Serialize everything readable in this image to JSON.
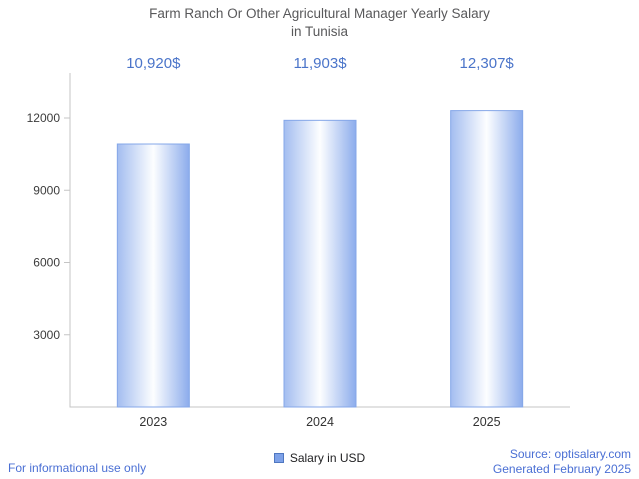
{
  "title_lines": [
    "Farm Ranch Or Other Agricultural Manager Yearly Salary",
    "in Tunisia"
  ],
  "chart_data": {
    "type": "bar",
    "title": "Farm Ranch Or Other Agricultural Manager Yearly Salary in Tunisia",
    "categories": [
      "2023",
      "2024",
      "2025"
    ],
    "values": [
      10920,
      11903,
      12307
    ],
    "value_labels": [
      "10,920$",
      "11,903$",
      "12,307$"
    ],
    "series_name": "Salary in USD",
    "xlabel": "",
    "ylabel": "",
    "ylim": [
      0,
      12900
    ],
    "yticks": [
      3000,
      6000,
      9000,
      12000
    ],
    "grid": false,
    "legend_position": "bottom"
  },
  "legend": {
    "label": "Salary in USD"
  },
  "footer": {
    "left": "For informational use only",
    "source": "Source: optisalary.com",
    "generated": "Generated February 2025"
  },
  "colors": {
    "accent_blue": "#4a74c9",
    "footer_blue": "#4a6fd4",
    "title_gray": "#58585a",
    "axis_gray": "#c4c4c4",
    "bar_edge_light": "#a3bdf0",
    "bar_center": "#fdfeff",
    "bar_edge_dark": "#8cacec",
    "bar_stroke": "#85a7e8",
    "legend_swatch": "#7da1e8"
  }
}
